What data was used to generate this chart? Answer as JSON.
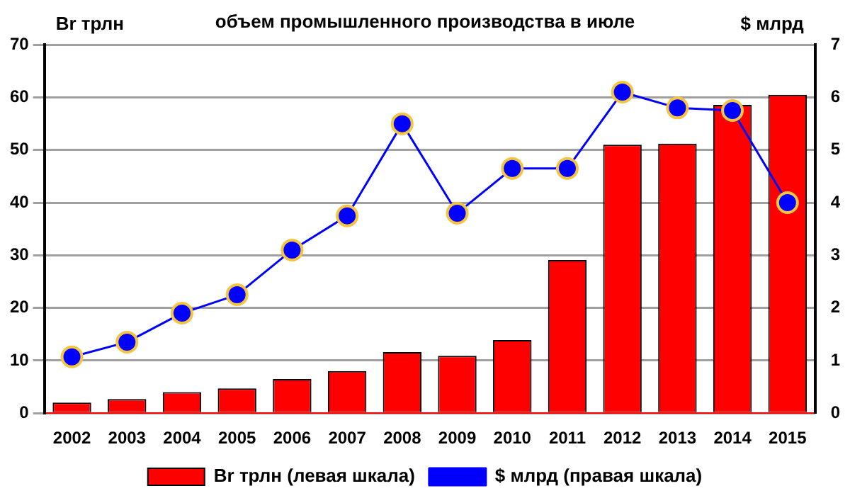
{
  "chart_data": {
    "type": "bar",
    "title": "объем промышленного производства в июле",
    "ylabel": "Br трлн",
    "y2label": "$ млрд",
    "categories": [
      "2002",
      "2003",
      "2004",
      "2005",
      "2006",
      "2007",
      "2008",
      "2009",
      "2010",
      "2011",
      "2012",
      "2013",
      "2014",
      "2015"
    ],
    "series": [
      {
        "name": "Br трлн (левая шкала)",
        "color": "#ff0000",
        "values": [
          2.0,
          2.7,
          4.0,
          4.7,
          6.5,
          8.0,
          11.6,
          10.9,
          13.9,
          29.1,
          51.0,
          51.2,
          58.6,
          60.5
        ]
      },
      {
        "name": "$ млрд (правая шкала)",
        "type": "line",
        "axis": "y2",
        "color": "#0000ff",
        "marker": "circle",
        "values": [
          1.07,
          1.35,
          1.9,
          2.25,
          3.1,
          3.75,
          5.5,
          3.8,
          4.65,
          4.65,
          6.1,
          5.8,
          5.75,
          4.0
        ]
      }
    ],
    "ylim": [
      0,
      70
    ],
    "yticks": [
      0,
      10,
      20,
      30,
      40,
      50,
      60,
      70
    ],
    "y2lim": [
      0,
      7
    ],
    "y2ticks": [
      0,
      1,
      2,
      3,
      4,
      5,
      6,
      7
    ],
    "grid": "y",
    "legend": "bottom"
  }
}
